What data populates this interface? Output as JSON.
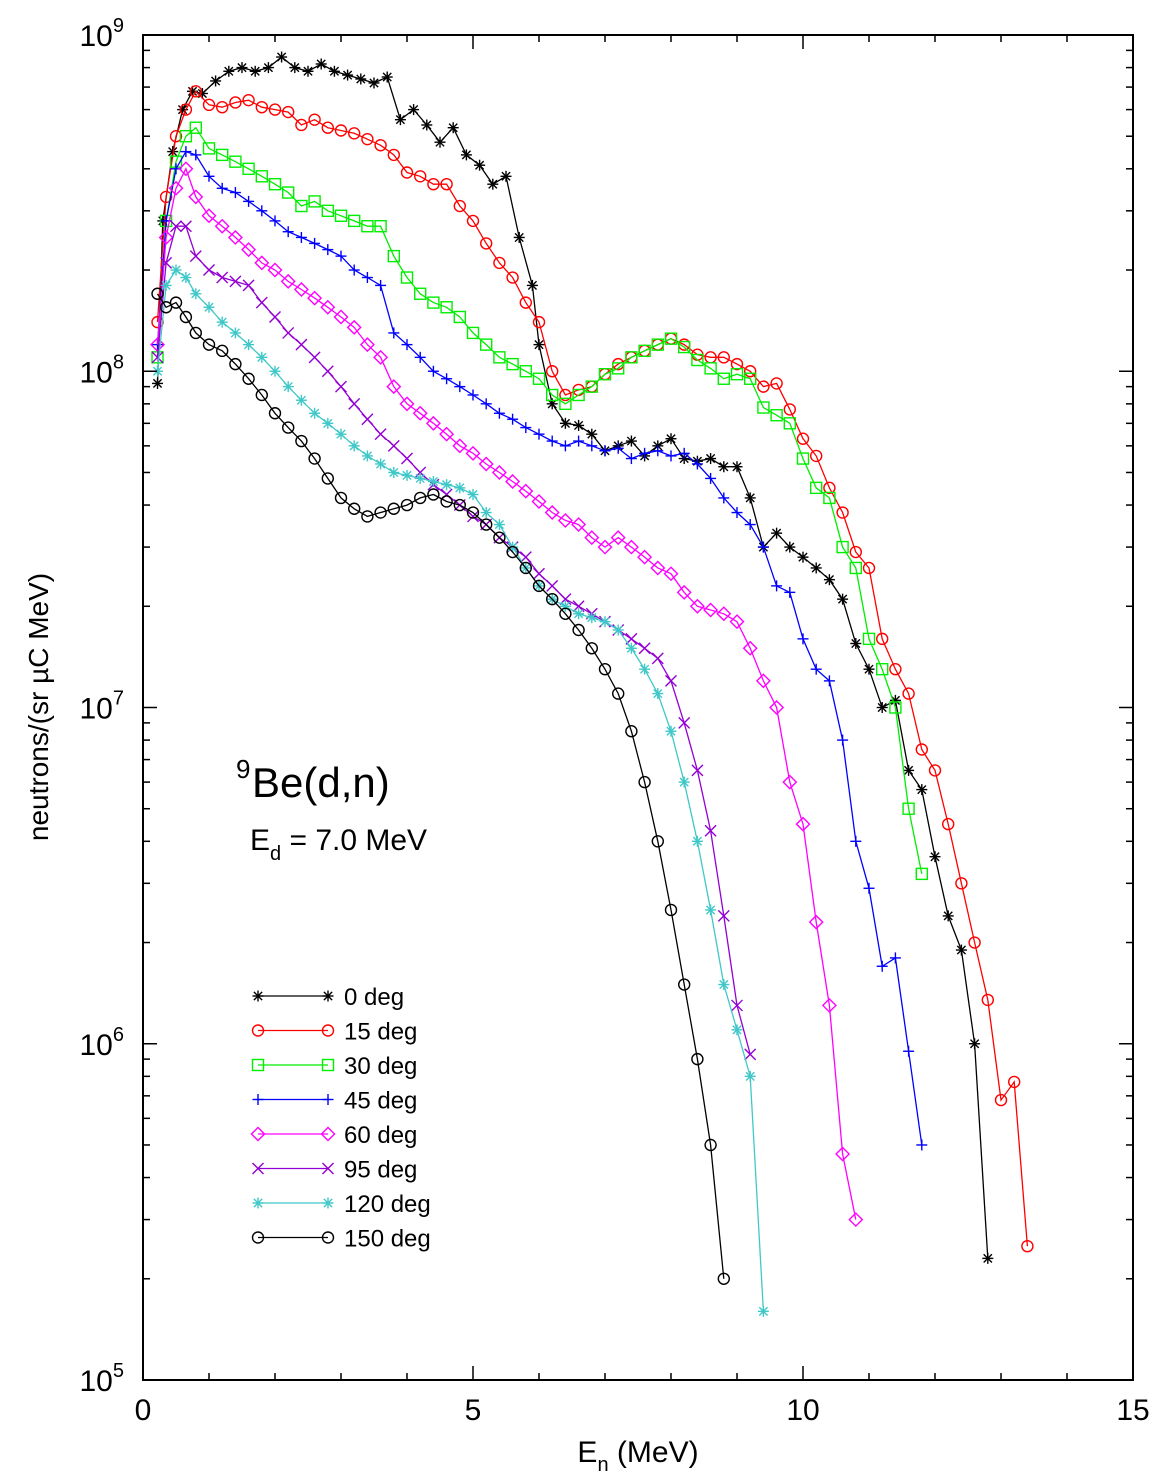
{
  "chart_data": {
    "type": "line",
    "title": "",
    "xlabel_main": "E",
    "xlabel_sub": "n",
    "xlabel_unit": " (MeV)",
    "ylabel": "neutrons/(sr µC MeV)",
    "xlim": [
      0,
      15
    ],
    "ylim": [
      100000,
      1000000000
    ],
    "yscale": "log",
    "grid": false,
    "legend_position": "lower-left",
    "x_ticks": [
      "0",
      "5",
      "10",
      "15"
    ],
    "y_ticks": [
      {
        "base": "10",
        "exp": "5"
      },
      {
        "base": "10",
        "exp": "6"
      },
      {
        "base": "10",
        "exp": "7"
      },
      {
        "base": "10",
        "exp": "8"
      },
      {
        "base": "10",
        "exp": "9"
      }
    ],
    "annotations": {
      "reaction_sup": "9",
      "reaction": "Be(d,n)",
      "energy_main": "E",
      "energy_sub": "d",
      "energy_rest": " = 7.0 MeV"
    },
    "series": [
      {
        "name": "0 deg",
        "color": "#000000",
        "marker": "star",
        "x": [
          0.22,
          0.3,
          0.45,
          0.6,
          0.75,
          0.9,
          1.1,
          1.3,
          1.5,
          1.7,
          1.9,
          2.1,
          2.3,
          2.5,
          2.7,
          2.9,
          3.1,
          3.3,
          3.5,
          3.7,
          3.9,
          4.1,
          4.3,
          4.5,
          4.7,
          4.9,
          5.1,
          5.3,
          5.5,
          5.7,
          5.9,
          6.0,
          6.2,
          6.4,
          6.6,
          6.8,
          7.0,
          7.2,
          7.4,
          7.6,
          7.8,
          8.0,
          8.2,
          8.4,
          8.6,
          8.8,
          9.0,
          9.2,
          9.4,
          9.6,
          9.8,
          10.0,
          10.2,
          10.4,
          10.6,
          10.8,
          11.0,
          11.2,
          11.4,
          11.6,
          11.8,
          12.0,
          12.2,
          12.4,
          12.6,
          12.8
        ],
        "y": [
          92000000.0,
          280000000.0,
          450000000.0,
          600000000.0,
          680000000.0,
          670000000.0,
          730000000.0,
          780000000.0,
          800000000.0,
          780000000.0,
          800000000.0,
          860000000.0,
          800000000.0,
          780000000.0,
          820000000.0,
          780000000.0,
          760000000.0,
          740000000.0,
          720000000.0,
          750000000.0,
          560000000.0,
          600000000.0,
          540000000.0,
          480000000.0,
          530000000.0,
          440000000.0,
          410000000.0,
          360000000.0,
          380000000.0,
          250000000.0,
          180000000.0,
          120000000.0,
          80000000.0,
          70000000.0,
          69000000.0,
          65000000.0,
          58000000.0,
          60000000.0,
          62000000.0,
          56000000.0,
          60000000.0,
          63000000.0,
          55000000.0,
          54000000.0,
          55000000.0,
          52000000.0,
          52000000.0,
          42000000.0,
          30000000.0,
          33000000.0,
          30000000.0,
          28000000.0,
          26000000.0,
          24000000.0,
          21000000.0,
          15500000.0,
          13000000.0,
          10000000.0,
          10500000.0,
          6500000.0,
          5700000.0,
          3600000.0,
          2400000.0,
          1900000.0,
          1000000.0,
          230000.0
        ]
      },
      {
        "name": "15 deg",
        "color": "#ff0000",
        "marker": "circle",
        "x": [
          0.22,
          0.35,
          0.5,
          0.65,
          0.8,
          1.0,
          1.2,
          1.4,
          1.6,
          1.8,
          2.0,
          2.2,
          2.4,
          2.6,
          2.8,
          3.0,
          3.2,
          3.4,
          3.6,
          3.8,
          4.0,
          4.2,
          4.4,
          4.6,
          4.8,
          5.0,
          5.2,
          5.4,
          5.6,
          5.8,
          6.0,
          6.2,
          6.4,
          6.6,
          6.8,
          7.0,
          7.2,
          7.4,
          7.6,
          7.8,
          8.0,
          8.2,
          8.4,
          8.6,
          8.8,
          9.0,
          9.2,
          9.4,
          9.6,
          9.8,
          10.0,
          10.2,
          10.4,
          10.6,
          10.8,
          11.0,
          11.2,
          11.4,
          11.6,
          11.8,
          12.0,
          12.2,
          12.4,
          12.6,
          12.8,
          13.0,
          13.2,
          13.4
        ],
        "y": [
          140000000.0,
          330000000.0,
          500000000.0,
          600000000.0,
          680000000.0,
          620000000.0,
          610000000.0,
          630000000.0,
          640000000.0,
          610000000.0,
          600000000.0,
          590000000.0,
          540000000.0,
          560000000.0,
          530000000.0,
          520000000.0,
          510000000.0,
          490000000.0,
          470000000.0,
          440000000.0,
          390000000.0,
          380000000.0,
          360000000.0,
          360000000.0,
          310000000.0,
          280000000.0,
          240000000.0,
          210000000.0,
          190000000.0,
          160000000.0,
          140000000.0,
          100000000.0,
          85000000.0,
          88000000.0,
          90000000.0,
          98000000.0,
          105000000.0,
          110000000.0,
          115000000.0,
          120000000.0,
          125000000.0,
          120000000.0,
          112000000.0,
          110000000.0,
          110000000.0,
          105000000.0,
          100000000.0,
          90000000.0,
          92000000.0,
          77000000.0,
          63000000.0,
          56000000.0,
          45000000.0,
          38000000.0,
          29000000.0,
          26000000.0,
          16000000.0,
          13000000.0,
          11000000.0,
          7500000.0,
          6500000.0,
          4500000.0,
          3000000.0,
          2000000.0,
          1350000.0,
          680000.0,
          770000.0,
          250000.0
        ]
      },
      {
        "name": "30 deg",
        "color": "#00ee00",
        "marker": "square",
        "x": [
          0.22,
          0.35,
          0.5,
          0.65,
          0.8,
          1.0,
          1.2,
          1.4,
          1.6,
          1.8,
          2.0,
          2.2,
          2.4,
          2.6,
          2.8,
          3.0,
          3.2,
          3.4,
          3.6,
          3.8,
          4.0,
          4.2,
          4.4,
          4.6,
          4.8,
          5.0,
          5.2,
          5.4,
          5.6,
          5.8,
          6.0,
          6.2,
          6.4,
          6.6,
          6.8,
          7.0,
          7.2,
          7.4,
          7.6,
          7.8,
          8.0,
          8.2,
          8.4,
          8.6,
          8.8,
          9.0,
          9.2,
          9.4,
          9.6,
          9.8,
          10.0,
          10.2,
          10.4,
          10.6,
          10.8,
          11.0,
          11.2,
          11.4,
          11.6,
          11.8
        ],
        "y": [
          110000000.0,
          280000000.0,
          420000000.0,
          500000000.0,
          530000000.0,
          460000000.0,
          440000000.0,
          420000000.0,
          400000000.0,
          380000000.0,
          360000000.0,
          340000000.0,
          310000000.0,
          320000000.0,
          300000000.0,
          290000000.0,
          280000000.0,
          270000000.0,
          270000000.0,
          220000000.0,
          190000000.0,
          170000000.0,
          160000000.0,
          155000000.0,
          145000000.0,
          130000000.0,
          120000000.0,
          110000000.0,
          105000000.0,
          100000000.0,
          95000000.0,
          85000000.0,
          80000000.0,
          85000000.0,
          90000000.0,
          98000000.0,
          102000000.0,
          110000000.0,
          115000000.0,
          120000000.0,
          125000000.0,
          118000000.0,
          108000000.0,
          102000000.0,
          95000000.0,
          98000000.0,
          95000000.0,
          78000000.0,
          74000000.0,
          70000000.0,
          55000000.0,
          45000000.0,
          42000000.0,
          30000000.0,
          26000000.0,
          16000000.0,
          13000000.0,
          10000000.0,
          5000000.0,
          3200000.0
        ]
      },
      {
        "name": "45 deg",
        "color": "#0000ff",
        "marker": "plus",
        "x": [
          0.22,
          0.35,
          0.5,
          0.65,
          0.8,
          1.0,
          1.2,
          1.4,
          1.6,
          1.8,
          2.0,
          2.2,
          2.4,
          2.6,
          2.8,
          3.0,
          3.2,
          3.4,
          3.6,
          3.8,
          4.0,
          4.2,
          4.4,
          4.6,
          4.8,
          5.0,
          5.2,
          5.4,
          5.6,
          5.8,
          6.0,
          6.2,
          6.4,
          6.6,
          6.8,
          7.0,
          7.2,
          7.4,
          7.6,
          7.8,
          8.0,
          8.2,
          8.4,
          8.6,
          8.8,
          9.0,
          9.2,
          9.4,
          9.6,
          9.8,
          10.0,
          10.2,
          10.4,
          10.6,
          10.8,
          11.0,
          11.2,
          11.4,
          11.6,
          11.8
        ],
        "y": [
          120000000.0,
          280000000.0,
          400000000.0,
          450000000.0,
          440000000.0,
          380000000.0,
          350000000.0,
          340000000.0,
          320000000.0,
          300000000.0,
          280000000.0,
          260000000.0,
          250000000.0,
          240000000.0,
          230000000.0,
          220000000.0,
          200000000.0,
          190000000.0,
          180000000.0,
          130000000.0,
          120000000.0,
          110000000.0,
          100000000.0,
          95000000.0,
          90000000.0,
          85000000.0,
          80000000.0,
          75000000.0,
          72000000.0,
          68000000.0,
          65000000.0,
          62000000.0,
          60000000.0,
          62000000.0,
          60000000.0,
          58000000.0,
          59000000.0,
          55000000.0,
          57000000.0,
          58000000.0,
          56000000.0,
          57000000.0,
          53000000.0,
          48000000.0,
          42000000.0,
          38000000.0,
          35000000.0,
          30000000.0,
          23000000.0,
          22000000.0,
          16000000.0,
          13000000.0,
          12000000.0,
          8000000.0,
          4000000.0,
          2900000.0,
          1700000.0,
          1800000.0,
          950000.0,
          500000.0
        ]
      },
      {
        "name": "60 deg",
        "color": "#ff00ff",
        "marker": "diamond",
        "x": [
          0.22,
          0.35,
          0.5,
          0.65,
          0.8,
          1.0,
          1.2,
          1.4,
          1.6,
          1.8,
          2.0,
          2.2,
          2.4,
          2.6,
          2.8,
          3.0,
          3.2,
          3.4,
          3.6,
          3.8,
          4.0,
          4.2,
          4.4,
          4.6,
          4.8,
          5.0,
          5.2,
          5.4,
          5.6,
          5.8,
          6.0,
          6.2,
          6.4,
          6.6,
          6.8,
          7.0,
          7.2,
          7.4,
          7.6,
          7.8,
          8.0,
          8.2,
          8.4,
          8.6,
          8.8,
          9.0,
          9.2,
          9.4,
          9.6,
          9.8,
          10.0,
          10.2,
          10.4,
          10.6,
          10.8
        ],
        "y": [
          120000000.0,
          250000000.0,
          350000000.0,
          400000000.0,
          330000000.0,
          290000000.0,
          270000000.0,
          250000000.0,
          230000000.0,
          210000000.0,
          200000000.0,
          185000000.0,
          175000000.0,
          165000000.0,
          155000000.0,
          145000000.0,
          135000000.0,
          120000000.0,
          110000000.0,
          90000000.0,
          80000000.0,
          75000000.0,
          70000000.0,
          65000000.0,
          60000000.0,
          57000000.0,
          53000000.0,
          50000000.0,
          47000000.0,
          44000000.0,
          41000000.0,
          38000000.0,
          36000000.0,
          35000000.0,
          32000000.0,
          30000000.0,
          32000000.0,
          30000000.0,
          28000000.0,
          26000000.0,
          25000000.0,
          22000000.0,
          20000000.0,
          19500000.0,
          19000000.0,
          18000000.0,
          15000000.0,
          12000000.0,
          10000000.0,
          6000000.0,
          4500000.0,
          2300000.0,
          1300000.0,
          470000.0,
          300000.0
        ]
      },
      {
        "name": "95 deg",
        "color": "#9400d3",
        "marker": "cross",
        "x": [
          0.22,
          0.35,
          0.5,
          0.65,
          0.8,
          1.0,
          1.2,
          1.4,
          1.6,
          1.8,
          2.0,
          2.2,
          2.4,
          2.6,
          2.8,
          3.0,
          3.2,
          3.4,
          3.6,
          3.8,
          4.0,
          4.2,
          4.4,
          4.6,
          4.8,
          5.0,
          5.2,
          5.4,
          5.6,
          5.8,
          6.0,
          6.2,
          6.4,
          6.6,
          6.8,
          7.0,
          7.2,
          7.4,
          7.6,
          7.8,
          8.0,
          8.2,
          8.4,
          8.6,
          8.8,
          9.0,
          9.2
        ],
        "y": [
          110000000.0,
          210000000.0,
          270000000.0,
          270000000.0,
          220000000.0,
          200000000.0,
          190000000.0,
          185000000.0,
          180000000.0,
          160000000.0,
          145000000.0,
          130000000.0,
          120000000.0,
          110000000.0,
          100000000.0,
          90000000.0,
          80000000.0,
          72000000.0,
          65000000.0,
          60000000.0,
          55000000.0,
          50000000.0,
          46000000.0,
          43000000.0,
          40000000.0,
          37000000.0,
          35000000.0,
          32000000.0,
          30000000.0,
          28000000.0,
          25000000.0,
          23000000.0,
          21000000.0,
          20000000.0,
          19000000.0,
          18000000.0,
          17000000.0,
          16000000.0,
          15000000.0,
          14000000.0,
          12000000.0,
          9000000.0,
          6500000.0,
          4300000.0,
          2400000.0,
          1300000.0,
          930000.0
        ]
      },
      {
        "name": "120 deg",
        "color": "#40c8c8",
        "marker": "asterisk",
        "x": [
          0.22,
          0.35,
          0.5,
          0.65,
          0.8,
          1.0,
          1.2,
          1.4,
          1.6,
          1.8,
          2.0,
          2.2,
          2.4,
          2.6,
          2.8,
          3.0,
          3.2,
          3.4,
          3.6,
          3.8,
          4.0,
          4.2,
          4.4,
          4.6,
          4.8,
          5.0,
          5.2,
          5.4,
          5.6,
          5.8,
          6.0,
          6.2,
          6.4,
          6.6,
          6.8,
          7.0,
          7.2,
          7.4,
          7.6,
          7.8,
          8.0,
          8.2,
          8.4,
          8.6,
          8.8,
          9.0,
          9.2,
          9.4
        ],
        "y": [
          100000000.0,
          180000000.0,
          200000000.0,
          190000000.0,
          170000000.0,
          155000000.0,
          140000000.0,
          130000000.0,
          120000000.0,
          110000000.0,
          100000000.0,
          90000000.0,
          82000000.0,
          75000000.0,
          70000000.0,
          65000000.0,
          60000000.0,
          56000000.0,
          53000000.0,
          50000000.0,
          49000000.0,
          48000000.0,
          47000000.0,
          46000000.0,
          45000000.0,
          43000000.0,
          38000000.0,
          35000000.0,
          30000000.0,
          26000000.0,
          23000000.0,
          21000000.0,
          20000000.0,
          19000000.0,
          18500000.0,
          18000000.0,
          17000000.0,
          15000000.0,
          13000000.0,
          11000000.0,
          8500000.0,
          6000000.0,
          4000000.0,
          2500000.0,
          1500000.0,
          1100000.0,
          800000.0,
          160000.0
        ]
      },
      {
        "name": "150 deg",
        "color": "#000000",
        "marker": "circle",
        "x": [
          0.22,
          0.35,
          0.5,
          0.65,
          0.8,
          1.0,
          1.2,
          1.4,
          1.6,
          1.8,
          2.0,
          2.2,
          2.4,
          2.6,
          2.8,
          3.0,
          3.2,
          3.4,
          3.6,
          3.8,
          4.0,
          4.2,
          4.4,
          4.6,
          4.8,
          5.0,
          5.2,
          5.4,
          5.6,
          5.8,
          6.0,
          6.2,
          6.4,
          6.6,
          6.8,
          7.0,
          7.2,
          7.4,
          7.6,
          7.8,
          8.0,
          8.2,
          8.4,
          8.6,
          8.8
        ],
        "y": [
          170000000.0,
          155000000.0,
          160000000.0,
          145000000.0,
          130000000.0,
          120000000.0,
          115000000.0,
          105000000.0,
          95000000.0,
          85000000.0,
          75000000.0,
          68000000.0,
          62000000.0,
          55000000.0,
          48000000.0,
          42000000.0,
          39000000.0,
          37000000.0,
          38000000.0,
          39000000.0,
          40000000.0,
          42000000.0,
          43000000.0,
          41000000.0,
          40000000.0,
          38000000.0,
          35000000.0,
          32000000.0,
          29000000.0,
          26000000.0,
          23000000.0,
          21000000.0,
          19000000.0,
          17000000.0,
          15000000.0,
          13000000.0,
          11000000.0,
          8500000.0,
          6000000.0,
          4000000.0,
          2500000.0,
          1500000.0,
          900000.0,
          500000.0,
          200000.0
        ]
      }
    ]
  }
}
